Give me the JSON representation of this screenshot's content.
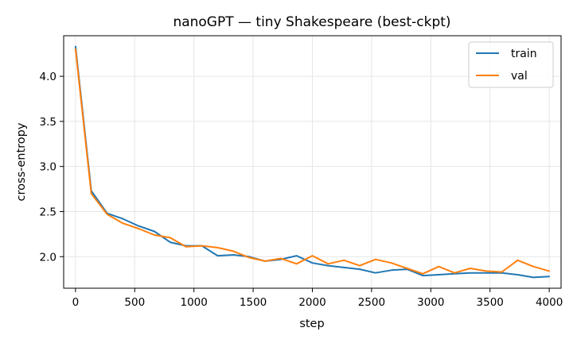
{
  "chart_data": {
    "type": "line",
    "title": "nanoGPT — tiny Shakespeare (best-ckpt)",
    "xlabel": "step",
    "ylabel": "cross-entropy",
    "xlim": [
      -100,
      4100
    ],
    "ylim": [
      1.65,
      4.45
    ],
    "xticks": [
      0,
      500,
      1000,
      1500,
      2000,
      2500,
      3000,
      3500,
      4000
    ],
    "yticks": [
      2.0,
      2.5,
      3.0,
      3.5,
      4.0
    ],
    "xtick_labels": [
      "0",
      "500",
      "1000",
      "1500",
      "2000",
      "2500",
      "3000",
      "3500",
      "4000"
    ],
    "ytick_labels": [
      "2.0",
      "2.5",
      "3.0",
      "3.5",
      "4.0"
    ],
    "grid": true,
    "legend_position": "top-right",
    "series": [
      {
        "name": "train",
        "color": "#1f77b4",
        "x": [
          0,
          133,
          267,
          400,
          533,
          667,
          800,
          933,
          1067,
          1200,
          1333,
          1467,
          1600,
          1733,
          1867,
          2000,
          2133,
          2267,
          2400,
          2533,
          2667,
          2800,
          2933,
          3067,
          3200,
          3333,
          3467,
          3600,
          3733,
          3867,
          4000
        ],
        "y": [
          4.33,
          2.73,
          2.48,
          2.42,
          2.34,
          2.28,
          2.16,
          2.12,
          2.12,
          2.01,
          2.02,
          2.0,
          1.95,
          1.97,
          2.01,
          1.93,
          1.9,
          1.88,
          1.86,
          1.82,
          1.85,
          1.86,
          1.79,
          1.8,
          1.81,
          1.82,
          1.82,
          1.82,
          1.8,
          1.77,
          1.78
        ]
      },
      {
        "name": "val",
        "color": "#ff7f0e",
        "x": [
          0,
          133,
          267,
          400,
          533,
          667,
          800,
          933,
          1067,
          1200,
          1333,
          1467,
          1600,
          1733,
          1867,
          2000,
          2133,
          2267,
          2400,
          2533,
          2667,
          2800,
          2933,
          3067,
          3200,
          3333,
          3467,
          3600,
          3733,
          3867,
          4000
        ],
        "y": [
          4.3,
          2.7,
          2.47,
          2.37,
          2.31,
          2.24,
          2.21,
          2.11,
          2.12,
          2.1,
          2.06,
          1.99,
          1.95,
          1.98,
          1.92,
          2.01,
          1.92,
          1.96,
          1.9,
          1.97,
          1.93,
          1.87,
          1.81,
          1.89,
          1.82,
          1.87,
          1.84,
          1.83,
          1.96,
          1.89,
          1.84
        ]
      }
    ]
  }
}
